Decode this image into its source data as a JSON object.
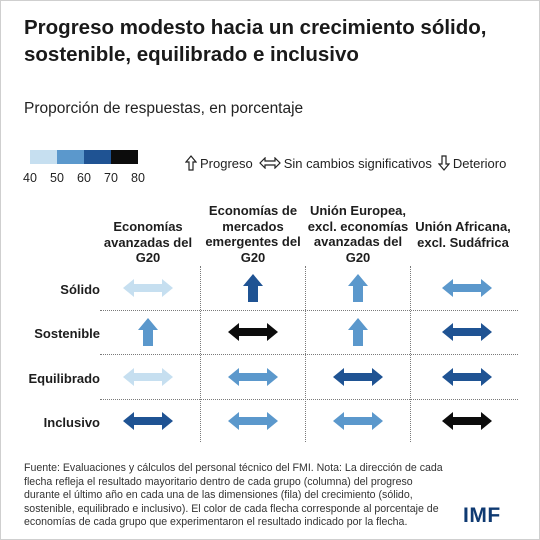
{
  "title": "Progreso modesto hacia un crecimiento sólido, sostenible, equilibrado e inclusivo",
  "subtitle": "Proporción de respuestas, en porcentaje",
  "scale": {
    "labels": [
      "40",
      "50",
      "60",
      "70",
      "80"
    ],
    "colors": [
      "#c6dff0",
      "#5b98cc",
      "#1f5393",
      "#0c0c0c"
    ]
  },
  "legend": {
    "up_label": "Progreso",
    "same_label": "Sin cambios significativos",
    "down_label": "Deterioro"
  },
  "chart_data": {
    "type": "table",
    "columns": [
      "Economías avanzadas del G20",
      "Economías de mercados emergentes del G20",
      "Unión Europea, excl. economías avanzadas del G20",
      "Unión Africana, excl. Sudáfrica"
    ],
    "rows": [
      "Sólido",
      "Sostenible",
      "Equilibrado",
      "Inclusivo"
    ],
    "cells": [
      [
        {
          "dir": "same",
          "level": 0
        },
        {
          "dir": "up",
          "level": 2
        },
        {
          "dir": "up",
          "level": 1
        },
        {
          "dir": "same",
          "level": 1
        }
      ],
      [
        {
          "dir": "up",
          "level": 1
        },
        {
          "dir": "same",
          "level": 3
        },
        {
          "dir": "up",
          "level": 1
        },
        {
          "dir": "same",
          "level": 2
        }
      ],
      [
        {
          "dir": "same",
          "level": 0
        },
        {
          "dir": "same",
          "level": 1
        },
        {
          "dir": "same",
          "level": 2
        },
        {
          "dir": "same",
          "level": 2
        }
      ],
      [
        {
          "dir": "same",
          "level": 2
        },
        {
          "dir": "same",
          "level": 1
        },
        {
          "dir": "same",
          "level": 1
        },
        {
          "dir": "same",
          "level": 3
        }
      ]
    ]
  },
  "notes": "Fuente: Evaluaciones y cálculos del personal técnico del FMI. Nota: La dirección de cada flecha refleja el resultado mayoritario dentro de cada grupo (columna) del progreso durante el último año en cada una de las dimensiones (fila) del crecimiento (sólido, sostenible, equilibrado e inclusivo). El color de cada flecha corresponde al porcentaje de economías de cada grupo que experimentaron el resultado indicado por la flecha.",
  "logo": "IMF"
}
